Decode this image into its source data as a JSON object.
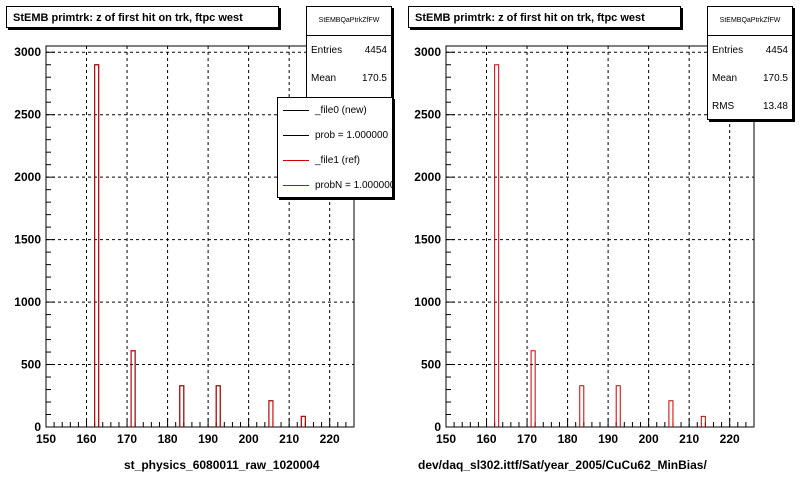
{
  "footnote": "",
  "colors": {
    "file0": "#000000",
    "file1": "#cc0000"
  },
  "left": {
    "title": "StEMB primtrk: z of first hit on trk, ftpc west",
    "stats": {
      "name": "StEMBQaPtrkZfFW",
      "entries_label": "Entries",
      "entries": "4454",
      "mean_label": "Mean",
      "mean": "170.5"
    },
    "legend": [
      {
        "label": "_file0 (new)",
        "color": "#000000"
      },
      {
        "label": "prob = 1.000000",
        "color": "#000000"
      },
      {
        "label": "_file1 (ref)",
        "color": "#cc0000"
      },
      {
        "label": "probN = 1.000000",
        "color": "#cc0000"
      }
    ],
    "xlabel": "st_physics_6080011_raw_1020004"
  },
  "right": {
    "title": "StEMB primtrk: z of first hit on trk, ftpc west",
    "stats": {
      "name": "StEMBQaPtrkZfFW",
      "entries_label": "Entries",
      "entries": "4454",
      "mean_label": "Mean",
      "mean": "170.5",
      "rms_label": "RMS",
      "rms": "13.48"
    },
    "xlabel": "dev/daq_sl302.ittf/Sat/year_2005/CuCu62_MinBias/"
  },
  "chart_data": [
    {
      "type": "bar",
      "title": "StEMB primtrk: z of first hit on trk, ftpc west",
      "xlabel": "st_physics_6080011_raw_1020004",
      "ylabel": "",
      "xlim": [
        150,
        226
      ],
      "ylim": [
        0,
        3050
      ],
      "xticks": [
        150,
        160,
        170,
        180,
        190,
        200,
        210,
        220
      ],
      "yticks": [
        0,
        500,
        1000,
        1500,
        2000,
        2500,
        3000
      ],
      "grid": true,
      "bin_width": 1,
      "bins": [
        162.5,
        171.5,
        183.5,
        192.5,
        205.5,
        213.5
      ],
      "series": [
        {
          "name": "_file0 (new)",
          "values": [
            2900,
            610,
            330,
            330,
            210,
            85
          ]
        },
        {
          "name": "_file1 (ref)",
          "values": [
            2900,
            610,
            330,
            330,
            210,
            85
          ]
        }
      ],
      "legend_position": "top-right"
    },
    {
      "type": "bar",
      "title": "StEMB primtrk: z of first hit on trk, ftpc west",
      "xlabel": "dev/daq_sl302.ittf/Sat/year_2005/CuCu62_MinBias/",
      "ylabel": "",
      "xlim": [
        150,
        226
      ],
      "ylim": [
        0,
        3050
      ],
      "xticks": [
        150,
        160,
        170,
        180,
        190,
        200,
        210,
        220
      ],
      "yticks": [
        0,
        500,
        1000,
        1500,
        2000,
        2500,
        3000
      ],
      "grid": true,
      "bin_width": 1,
      "bins": [
        162.5,
        171.5,
        183.5,
        192.5,
        205.5,
        213.5
      ],
      "series": [
        {
          "name": "",
          "values": [
            2900,
            610,
            330,
            330,
            210,
            85
          ]
        }
      ]
    }
  ]
}
